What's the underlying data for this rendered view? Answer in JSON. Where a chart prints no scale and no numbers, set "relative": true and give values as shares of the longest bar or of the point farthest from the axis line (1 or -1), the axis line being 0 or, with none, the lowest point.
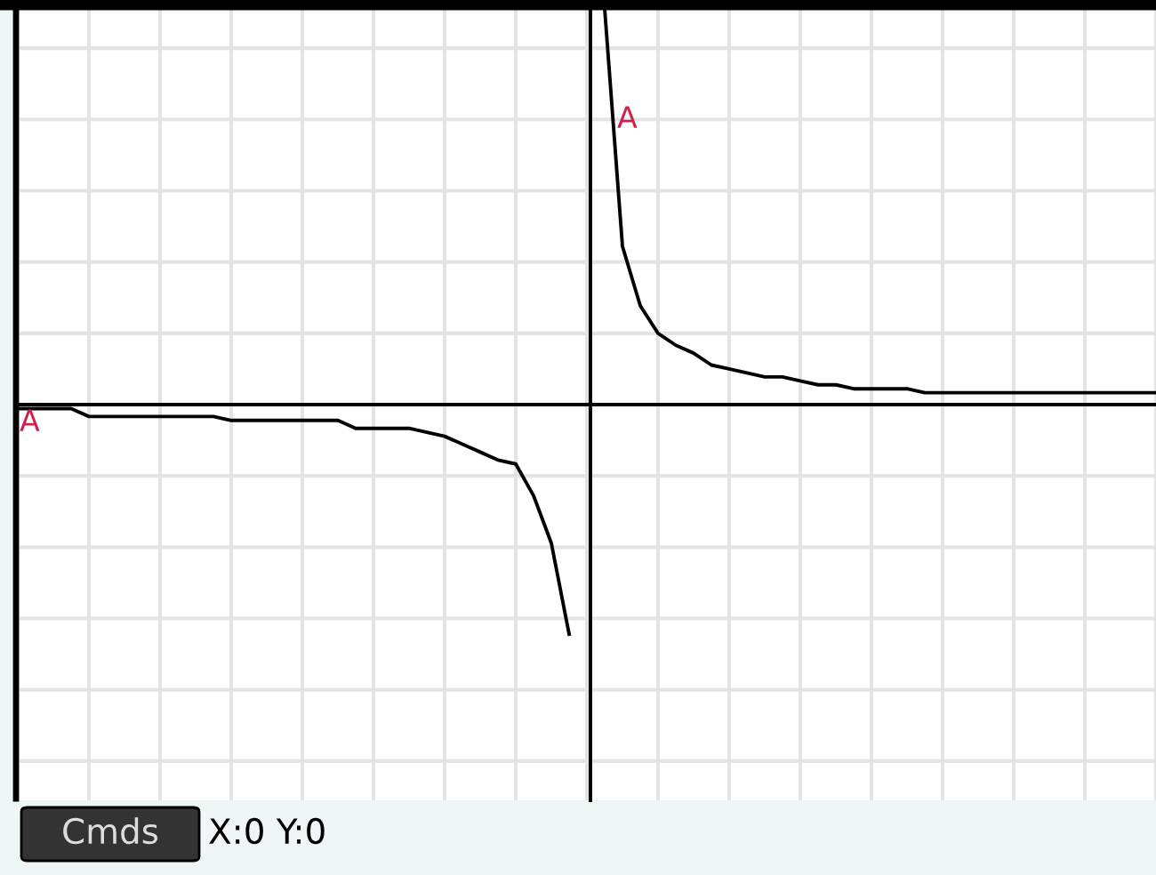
{
  "chart_data": {
    "type": "line",
    "relative": true,
    "grid": true,
    "tick_labels": false,
    "legend": false,
    "marker": "none",
    "line_style": "solid",
    "categories": [
      null,
      null,
      null,
      null,
      null,
      null,
      null,
      null,
      null,
      null,
      null,
      null,
      null,
      null,
      null,
      null,
      null,
      null,
      null,
      null,
      null,
      null,
      null,
      null,
      null,
      null,
      null,
      null,
      null,
      null,
      null,
      null,
      null,
      null,
      null,
      null,
      null,
      null,
      null,
      null,
      null,
      null,
      null,
      null,
      null,
      null,
      null,
      null,
      null,
      null,
      null,
      null,
      null,
      null,
      null,
      null,
      null,
      null,
      null,
      null,
      null,
      null,
      null,
      null,
      null
    ],
    "series": [
      {
        "color": "#000000",
        "values": [
          -0.01,
          -0.01,
          -0.01,
          -0.01,
          -0.03,
          -0.03,
          -0.03,
          -0.03,
          -0.03,
          -0.03,
          -0.03,
          -0.03,
          -0.04,
          -0.04,
          -0.04,
          -0.04,
          -0.04,
          -0.04,
          -0.04,
          -0.06,
          -0.06,
          -0.06,
          -0.06,
          -0.07,
          -0.08,
          -0.1,
          -0.12,
          -0.14,
          -0.15,
          -0.23,
          -0.35,
          -0.58,
          null,
          1,
          0.4,
          0.25,
          0.18,
          0.15,
          0.13,
          0.1,
          0.09,
          0.08,
          0.07,
          0.07,
          0.06,
          0.05,
          0.05,
          0.04,
          0.04,
          0.04,
          0.04,
          0.03,
          0.03,
          0.03,
          0.03,
          0.03,
          0.03,
          0.03,
          0.03,
          0.03,
          0.03,
          0.03,
          0.03,
          0.03,
          0.03
        ]
      }
    ],
    "annotations": [
      "A",
      "A",
      "Cmds",
      "X:0 Y:0"
    ]
  }
}
